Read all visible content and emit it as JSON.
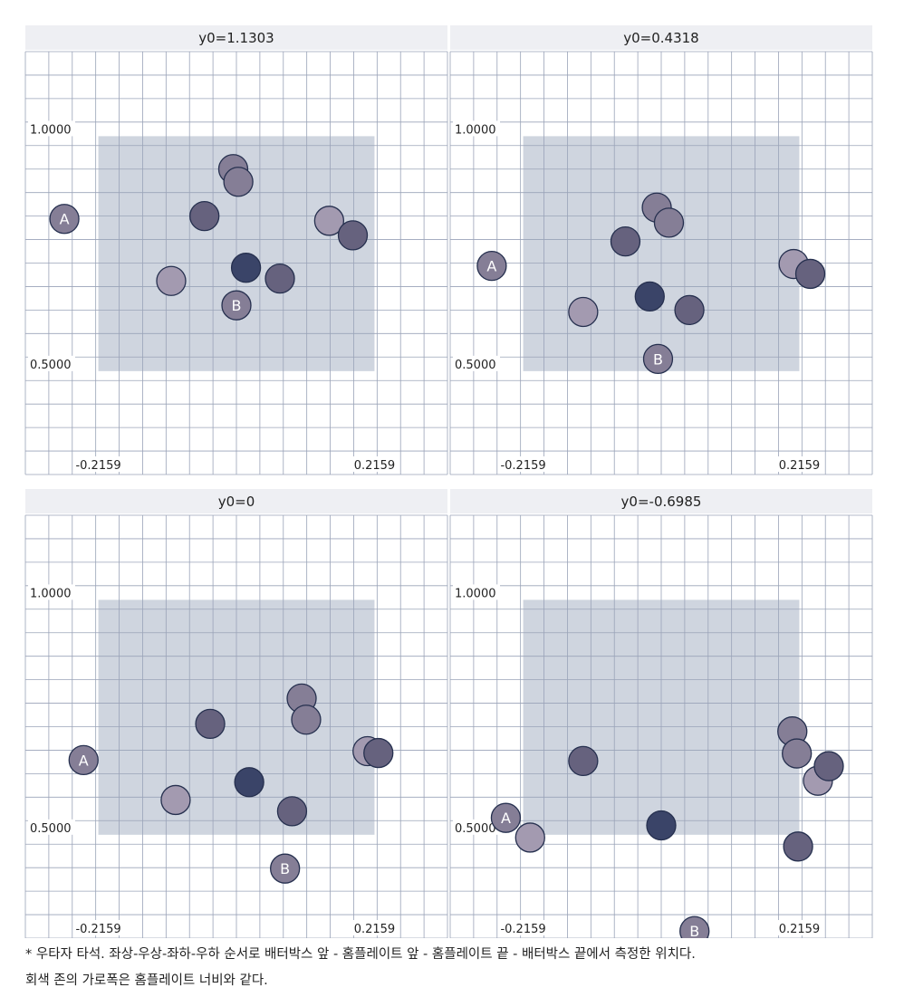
{
  "chart_data": {
    "type": "scatter",
    "note": "",
    "xlim": [
      -0.33,
      0.33
    ],
    "ylim": [
      0.28,
      1.18
    ],
    "zone_x": [
      -0.2159,
      0.2159
    ],
    "zone_y": [
      0.5,
      1.0
    ],
    "x_tick_labels": [
      "-0.2159",
      "0.2159"
    ],
    "y_tick_labels": [
      "1.0000",
      "0.5000"
    ],
    "colors": {
      "panel_header_bg": "#eeeff3",
      "grid_line": "#9aa3b8",
      "zone_fill": "#cfd5df",
      "marker_light": "#a39ab0",
      "marker_mid": "#857e96",
      "marker_dark": "#66627e",
      "marker_darkest": "#3a4468",
      "marker_stroke": "#26304f"
    },
    "panels": [
      {
        "title": "y0=1.1303",
        "points": [
          {
            "label": "A",
            "x": -0.269,
            "y": 0.824,
            "tone": "mid"
          },
          {
            "label": "B",
            "x": 0.0,
            "y": 0.64,
            "tone": "mid"
          },
          {
            "label": "",
            "x": -0.102,
            "y": 0.692,
            "tone": "light"
          },
          {
            "label": "",
            "x": -0.05,
            "y": 0.83,
            "tone": "dark"
          },
          {
            "label": "",
            "x": -0.005,
            "y": 0.93,
            "tone": "mid"
          },
          {
            "label": "",
            "x": 0.003,
            "y": 0.903,
            "tone": "mid"
          },
          {
            "label": "",
            "x": 0.015,
            "y": 0.72,
            "tone": "darkest"
          },
          {
            "label": "",
            "x": 0.068,
            "y": 0.697,
            "tone": "dark"
          },
          {
            "label": "",
            "x": 0.145,
            "y": 0.82,
            "tone": "light"
          },
          {
            "label": "",
            "x": 0.182,
            "y": 0.789,
            "tone": "dark"
          }
        ]
      },
      {
        "title": "y0=0.4318",
        "points": [
          {
            "label": "A",
            "x": -0.265,
            "y": 0.724,
            "tone": "mid"
          },
          {
            "label": "B",
            "x": -0.005,
            "y": 0.526,
            "tone": "mid"
          },
          {
            "label": "",
            "x": -0.122,
            "y": 0.626,
            "tone": "light"
          },
          {
            "label": "",
            "x": -0.056,
            "y": 0.776,
            "tone": "dark"
          },
          {
            "label": "",
            "x": -0.007,
            "y": 0.848,
            "tone": "mid"
          },
          {
            "label": "",
            "x": 0.012,
            "y": 0.816,
            "tone": "mid"
          },
          {
            "label": "",
            "x": -0.018,
            "y": 0.659,
            "tone": "darkest"
          },
          {
            "label": "",
            "x": 0.044,
            "y": 0.63,
            "tone": "dark"
          },
          {
            "label": "",
            "x": 0.207,
            "y": 0.728,
            "tone": "light"
          },
          {
            "label": "",
            "x": 0.233,
            "y": 0.707,
            "tone": "dark"
          }
        ]
      },
      {
        "title": "y0=0",
        "points": [
          {
            "label": "A",
            "x": -0.239,
            "y": 0.659,
            "tone": "mid"
          },
          {
            "label": "B",
            "x": 0.076,
            "y": 0.428,
            "tone": "mid"
          },
          {
            "label": "",
            "x": -0.095,
            "y": 0.574,
            "tone": "light"
          },
          {
            "label": "",
            "x": -0.041,
            "y": 0.736,
            "tone": "dark"
          },
          {
            "label": "",
            "x": 0.102,
            "y": 0.79,
            "tone": "mid"
          },
          {
            "label": "",
            "x": 0.109,
            "y": 0.745,
            "tone": "mid"
          },
          {
            "label": "",
            "x": 0.02,
            "y": 0.612,
            "tone": "darkest"
          },
          {
            "label": "",
            "x": 0.087,
            "y": 0.55,
            "tone": "dark"
          },
          {
            "label": "",
            "x": 0.205,
            "y": 0.678,
            "tone": "light"
          },
          {
            "label": "",
            "x": 0.222,
            "y": 0.674,
            "tone": "dark"
          }
        ]
      },
      {
        "title": "y0=-0.6985",
        "points": [
          {
            "label": "A",
            "x": -0.243,
            "y": 0.536,
            "tone": "mid"
          },
          {
            "label": "B",
            "x": 0.052,
            "y": 0.295,
            "tone": "mid"
          },
          {
            "label": "",
            "x": -0.205,
            "y": 0.494,
            "tone": "light"
          },
          {
            "label": "",
            "x": -0.122,
            "y": 0.657,
            "tone": "dark"
          },
          {
            "label": "",
            "x": 0.0,
            "y": 0.52,
            "tone": "darkest"
          },
          {
            "label": "",
            "x": 0.205,
            "y": 0.72,
            "tone": "mid"
          },
          {
            "label": "",
            "x": 0.212,
            "y": 0.673,
            "tone": "mid"
          },
          {
            "label": "",
            "x": 0.214,
            "y": 0.475,
            "tone": "dark"
          },
          {
            "label": "",
            "x": 0.245,
            "y": 0.615,
            "tone": "light"
          },
          {
            "label": "",
            "x": 0.262,
            "y": 0.646,
            "tone": "dark"
          }
        ]
      }
    ]
  },
  "caption": {
    "line1": "* 우타자 타석. 좌상-우상-좌하-우하 순서로 배터박스 앞 - 홈플레이트 앞 - 홈플레이트 끝 - 배터박스 끝에서 측정한 위치다.",
    "line2": "회색 존의 가로폭은 홈플레이트 너비와 같다."
  }
}
